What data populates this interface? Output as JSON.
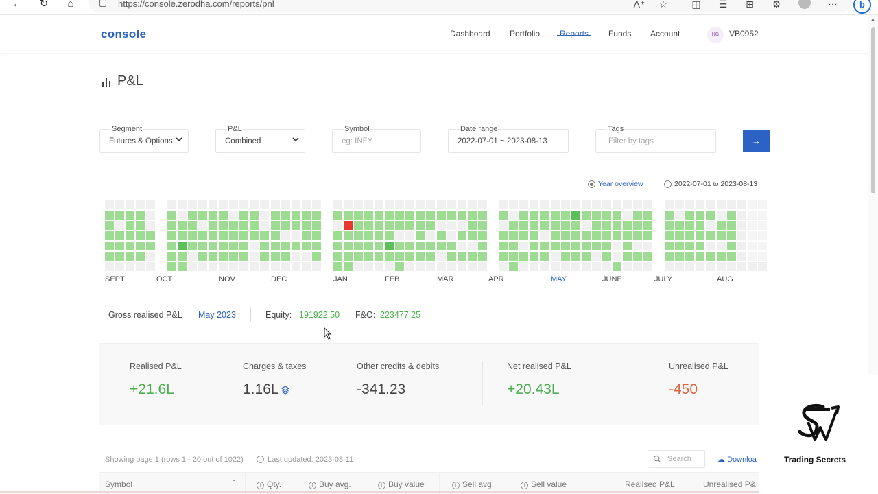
{
  "browser": {
    "url": "https://console.zerodha.com/reports/pnl",
    "icons": [
      "back-icon",
      "reload-icon",
      "home-icon",
      "read-aloud-icon",
      "favorite-icon",
      "split-screen-icon",
      "favorites-list-icon",
      "collections-icon",
      "extensions-icon",
      "profile-icon",
      "more-icon",
      "bing-icon"
    ]
  },
  "header": {
    "logo": "console",
    "menu": [
      "Dashboard",
      "Portfolio",
      "Reports",
      "Funds",
      "Account"
    ],
    "active": "Reports",
    "avatar_initials": "HG",
    "user_id": "VB0952"
  },
  "page": {
    "title": "P&L"
  },
  "filters": {
    "segment": {
      "label": "Segment",
      "value": "Futures & Options"
    },
    "pnl": {
      "label": "P&L",
      "value": "Combined"
    },
    "symbol": {
      "label": "Symbol",
      "placeholder": "eg: INFY"
    },
    "date_range": {
      "label": "Date range",
      "value": "2022-07-01 ~ 2023-08-13"
    },
    "tags": {
      "label": "Tags",
      "placeholder": "Filter by tags"
    },
    "submit_icon": "→"
  },
  "view_toggle": {
    "year_overview": "Year overview",
    "range_from": "2022-07-01",
    "range_to_word": "to",
    "range_to": "2023-08-13",
    "selected": "year_overview"
  },
  "heatmap": {
    "months": [
      "SEPT",
      "OCT",
      "NOV",
      "DEC",
      "JAN",
      "FEB",
      "MAR",
      "APR",
      "MAY",
      "JUNE",
      "JULY",
      "AUG"
    ],
    "active_month": "MAY",
    "colors": {
      "empty": "#f0f0f0",
      "profit_light": "#9edb93",
      "profit_strong": "#5cc05a",
      "loss": "#e8382e"
    }
  },
  "summary": {
    "label": "Gross realised P&L",
    "period": "May 2023",
    "equity_label": "Equity:",
    "equity_value": "191922.50",
    "fo_label": "F&O:",
    "fo_value": "223477.25"
  },
  "stats": [
    {
      "label": "Realised P&L",
      "value": "+21.6L",
      "tone": "green"
    },
    {
      "label": "Charges & taxes",
      "value": "1.16L",
      "tone": "dark"
    },
    {
      "label": "Other credits & debits",
      "value": "-341.23",
      "tone": "dark"
    },
    {
      "label": "Net realised P&L",
      "value": "+20.43L",
      "tone": "green"
    },
    {
      "label": "Unrealised P&L",
      "value": "-450",
      "tone": "red"
    }
  ],
  "table": {
    "showing": "Showing page 1 (rows 1 - 20 out of 1022)",
    "last_updated": "Last updated: 2023-08-11",
    "search_placeholder": "Search",
    "download": "Downloa",
    "columns": [
      "Symbol",
      "Qty.",
      "Buy avg.",
      "Buy value",
      "Sell avg.",
      "Sell value",
      "Realised P&L",
      "Unrealised P&"
    ]
  },
  "watermark": {
    "text": "Trading Secrets"
  }
}
